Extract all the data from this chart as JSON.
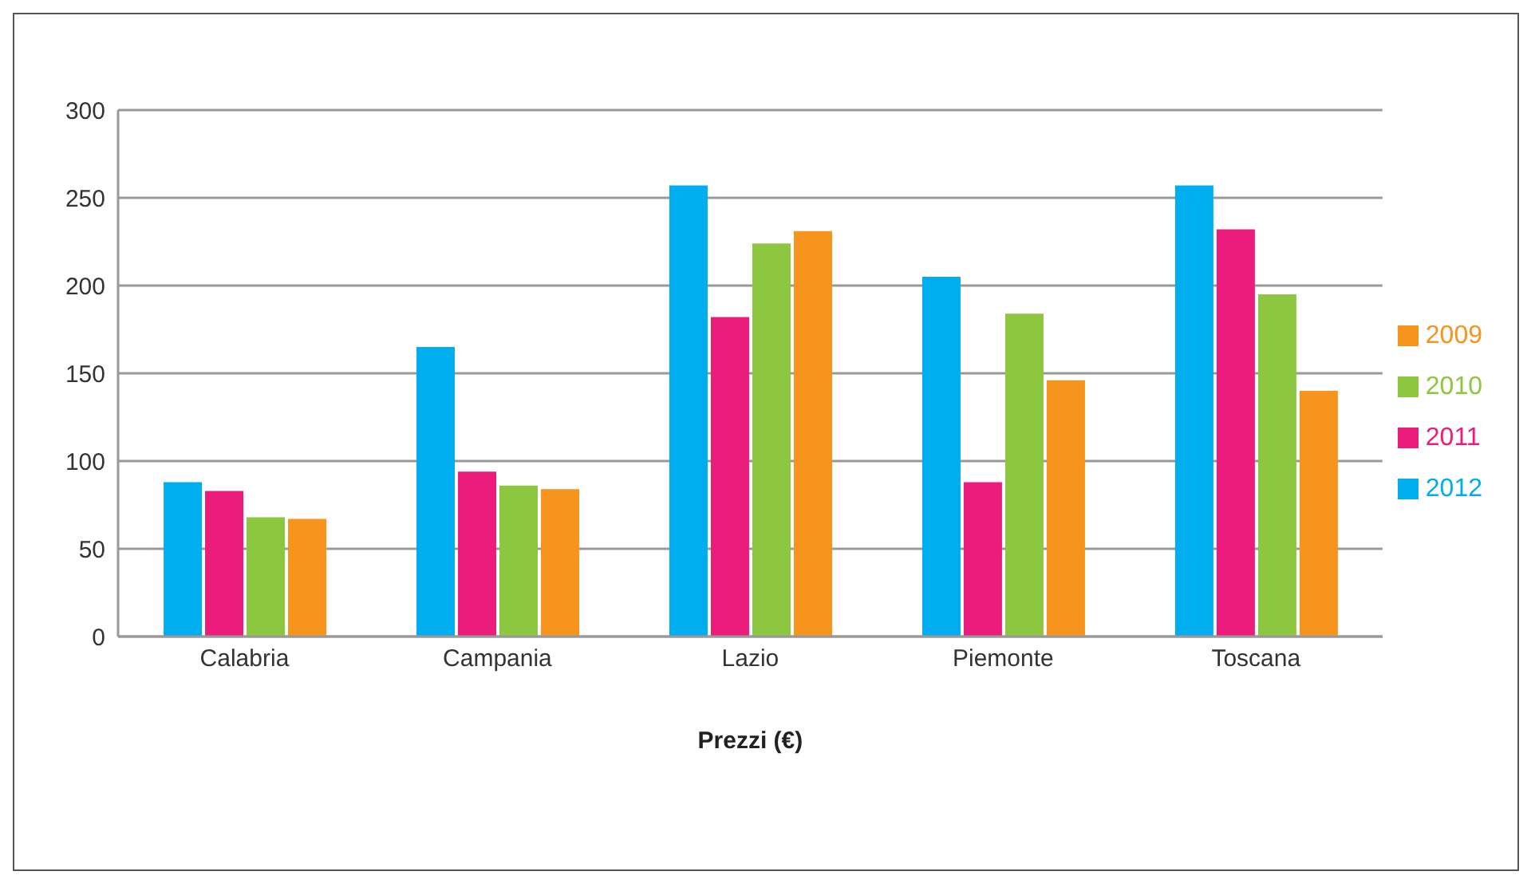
{
  "chart_data": {
    "type": "bar",
    "xlabel": "Prezzi (€)",
    "categories": [
      "Calabria",
      "Campania",
      "Lazio",
      "Piemonte",
      "Toscana"
    ],
    "series": [
      {
        "name": "2012",
        "color": "#00aeef",
        "values": [
          88,
          165,
          257,
          205,
          257
        ]
      },
      {
        "name": "2011",
        "color": "#ec1c7c",
        "values": [
          83,
          94,
          182,
          88,
          232
        ]
      },
      {
        "name": "2010",
        "color": "#8dc63f",
        "values": [
          68,
          86,
          224,
          184,
          195
        ]
      },
      {
        "name": "2009",
        "color": "#f7941d",
        "values": [
          67,
          84,
          231,
          146,
          140
        ]
      }
    ],
    "ylim": [
      0,
      300
    ],
    "yticks": [
      0,
      50,
      100,
      150,
      200,
      250,
      300
    ],
    "grid": "y",
    "legend": "right"
  }
}
